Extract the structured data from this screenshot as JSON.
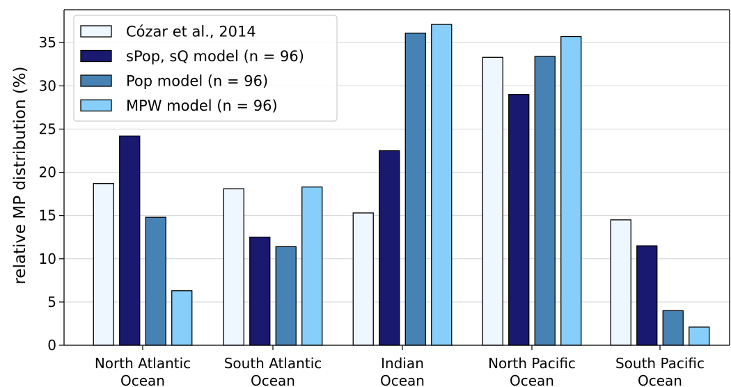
{
  "chart_data": {
    "type": "bar",
    "categories": [
      [
        "North Atlantic",
        "Ocean"
      ],
      [
        "South Atlantic",
        "Ocean"
      ],
      [
        "Indian",
        "Ocean"
      ],
      [
        "North Pacific",
        "Ocean"
      ],
      [
        "South Pacific",
        "Ocean"
      ]
    ],
    "series": [
      {
        "name": "Cózar et al., 2014",
        "color": "#eef6ff",
        "values": [
          18.7,
          18.1,
          15.3,
          33.3,
          14.5
        ]
      },
      {
        "name": "sPop, sQ model (n = 96)",
        "color": "#191970",
        "values": [
          24.2,
          12.5,
          22.5,
          29.0,
          11.5
        ]
      },
      {
        "name": "Pop model (n = 96)",
        "color": "#4682b4",
        "values": [
          14.8,
          11.4,
          36.1,
          33.4,
          4.0
        ]
      },
      {
        "name": "MPW model (n = 96)",
        "color": "#87cefa",
        "values": [
          6.3,
          18.3,
          37.1,
          35.7,
          2.1
        ]
      }
    ],
    "xlabel": "",
    "ylabel": "relative MP distribution (%)",
    "ylim": [
      0,
      38.8
    ],
    "yticks": [
      0,
      5,
      10,
      15,
      20,
      25,
      30,
      35
    ],
    "grid": "y",
    "legend": "top-left"
  }
}
